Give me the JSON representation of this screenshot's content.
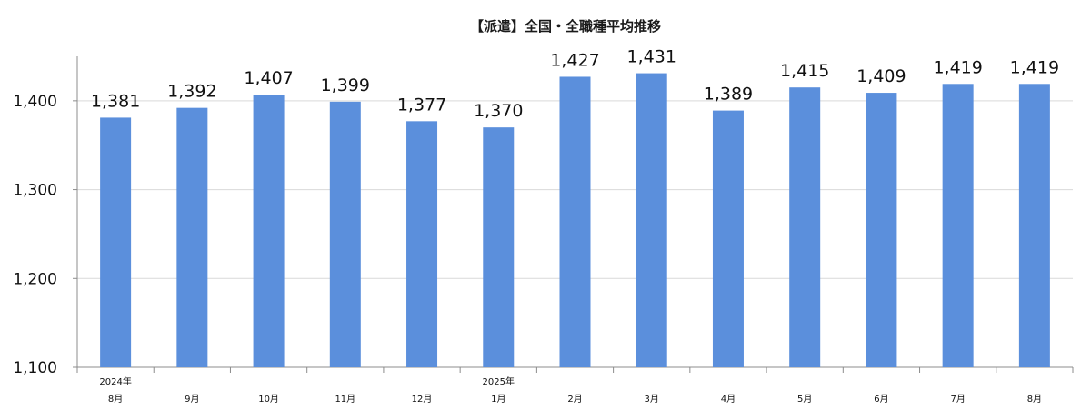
{
  "chart_data": {
    "type": "bar",
    "title": "【派遣】全国・全職種平均推移",
    "categories": [
      {
        "year": "2024年",
        "month": "8月"
      },
      {
        "year": "",
        "month": "9月"
      },
      {
        "year": "",
        "month": "10月"
      },
      {
        "year": "",
        "month": "11月"
      },
      {
        "year": "",
        "month": "12月"
      },
      {
        "year": "2025年",
        "month": "1月"
      },
      {
        "year": "",
        "month": "2月"
      },
      {
        "year": "",
        "month": "3月"
      },
      {
        "year": "",
        "month": "4月"
      },
      {
        "year": "",
        "month": "5月"
      },
      {
        "year": "",
        "month": "6月"
      },
      {
        "year": "",
        "month": "7月"
      },
      {
        "year": "",
        "month": "8月"
      }
    ],
    "values": [
      1381,
      1392,
      1407,
      1399,
      1377,
      1370,
      1427,
      1431,
      1389,
      1415,
      1409,
      1419,
      1419
    ],
    "value_labels": [
      "1,381",
      "1,392",
      "1,407",
      "1,399",
      "1,377",
      "1,370",
      "1,427",
      "1,431",
      "1,389",
      "1,415",
      "1,409",
      "1,419",
      "1,419"
    ],
    "ylim": [
      1100,
      1450
    ],
    "yticks": [
      1100,
      1200,
      1300,
      1400
    ],
    "ytick_labels": [
      "1,100",
      "1,200",
      "1,300",
      "1,400"
    ],
    "grid": true,
    "legend": "none",
    "bar_color": "#5b8fdc",
    "grid_color": "#d9d9d9",
    "axis_color": "#8c8c8c"
  }
}
